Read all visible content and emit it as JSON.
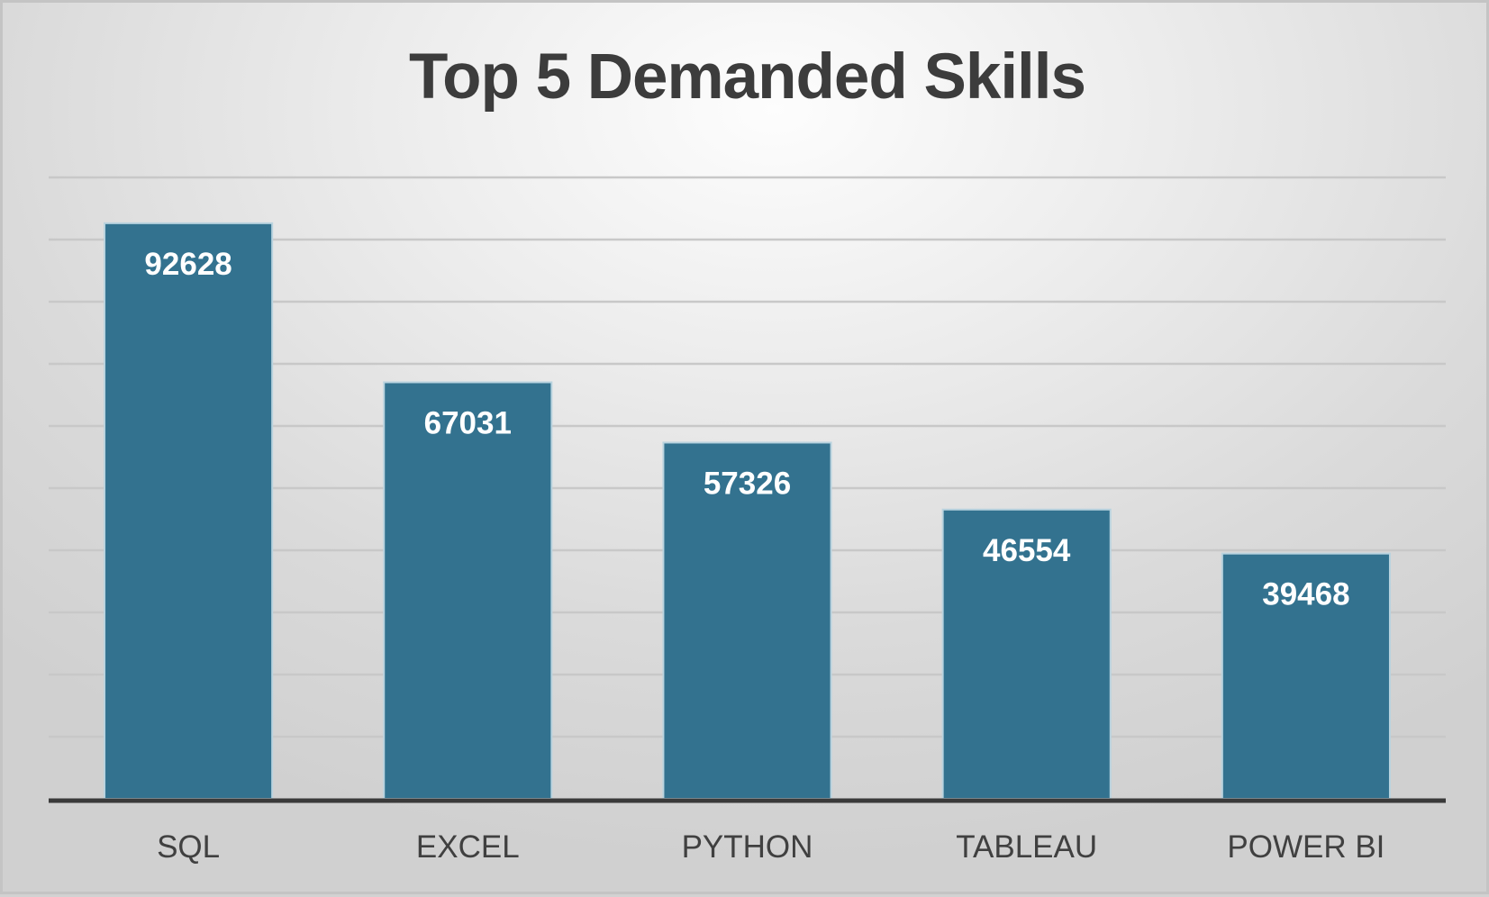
{
  "chart_data": {
    "type": "bar",
    "title": "Top 5 Demanded Skills",
    "categories": [
      "SQL",
      "EXCEL",
      "PYTHON",
      "TABLEAU",
      "POWER BI"
    ],
    "values": [
      92628,
      67031,
      57326,
      46554,
      39468
    ],
    "ylim": [
      0,
      100000
    ],
    "grid": true,
    "legend": "none",
    "colors": {
      "bar": "#33728f",
      "bar_edge": "#b9d3df",
      "grid": "#c8c8c8",
      "axis": "#3a3a3a",
      "title": "#3c3c3c",
      "bar_label": "#ffffff",
      "category_label": "#404040"
    }
  }
}
